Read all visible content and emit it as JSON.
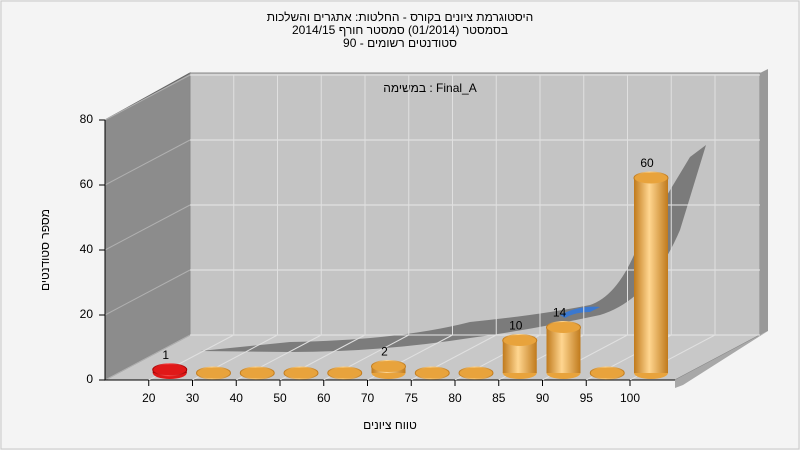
{
  "chart_data": {
    "type": "bar3d",
    "title_lines": [
      "היסטוגרמת ציונים בקורס - החלטות: אתגרים והשלכות",
      "בסמסטר  (01/2014)  סמסטר חורף 2014/15",
      "סטודנטים רשומים - 90"
    ],
    "subtitle": "במשימה : Final_A",
    "x_label": "טווח ציונים",
    "y_label": "מספר סטודנטים",
    "categories": [
      "20",
      "30",
      "40",
      "50",
      "60",
      "70",
      "75",
      "80",
      "85",
      "90",
      "95",
      "100"
    ],
    "values": [
      1,
      0,
      0,
      0,
      0,
      2,
      0,
      0,
      10,
      14,
      0,
      60
    ],
    "colors": [
      "#e01818",
      "#e8a33c",
      "#e8a33c",
      "#e8a33c",
      "#e8a33c",
      "#e8a33c",
      "#e8a33c",
      "#e8a33c",
      "#e8a33c",
      "#e8a33c",
      "#e8a33c",
      "#e8a33c"
    ],
    "ylim": [
      0,
      80
    ],
    "yticks": [
      0,
      20,
      40,
      60,
      80
    ],
    "grid": true
  }
}
